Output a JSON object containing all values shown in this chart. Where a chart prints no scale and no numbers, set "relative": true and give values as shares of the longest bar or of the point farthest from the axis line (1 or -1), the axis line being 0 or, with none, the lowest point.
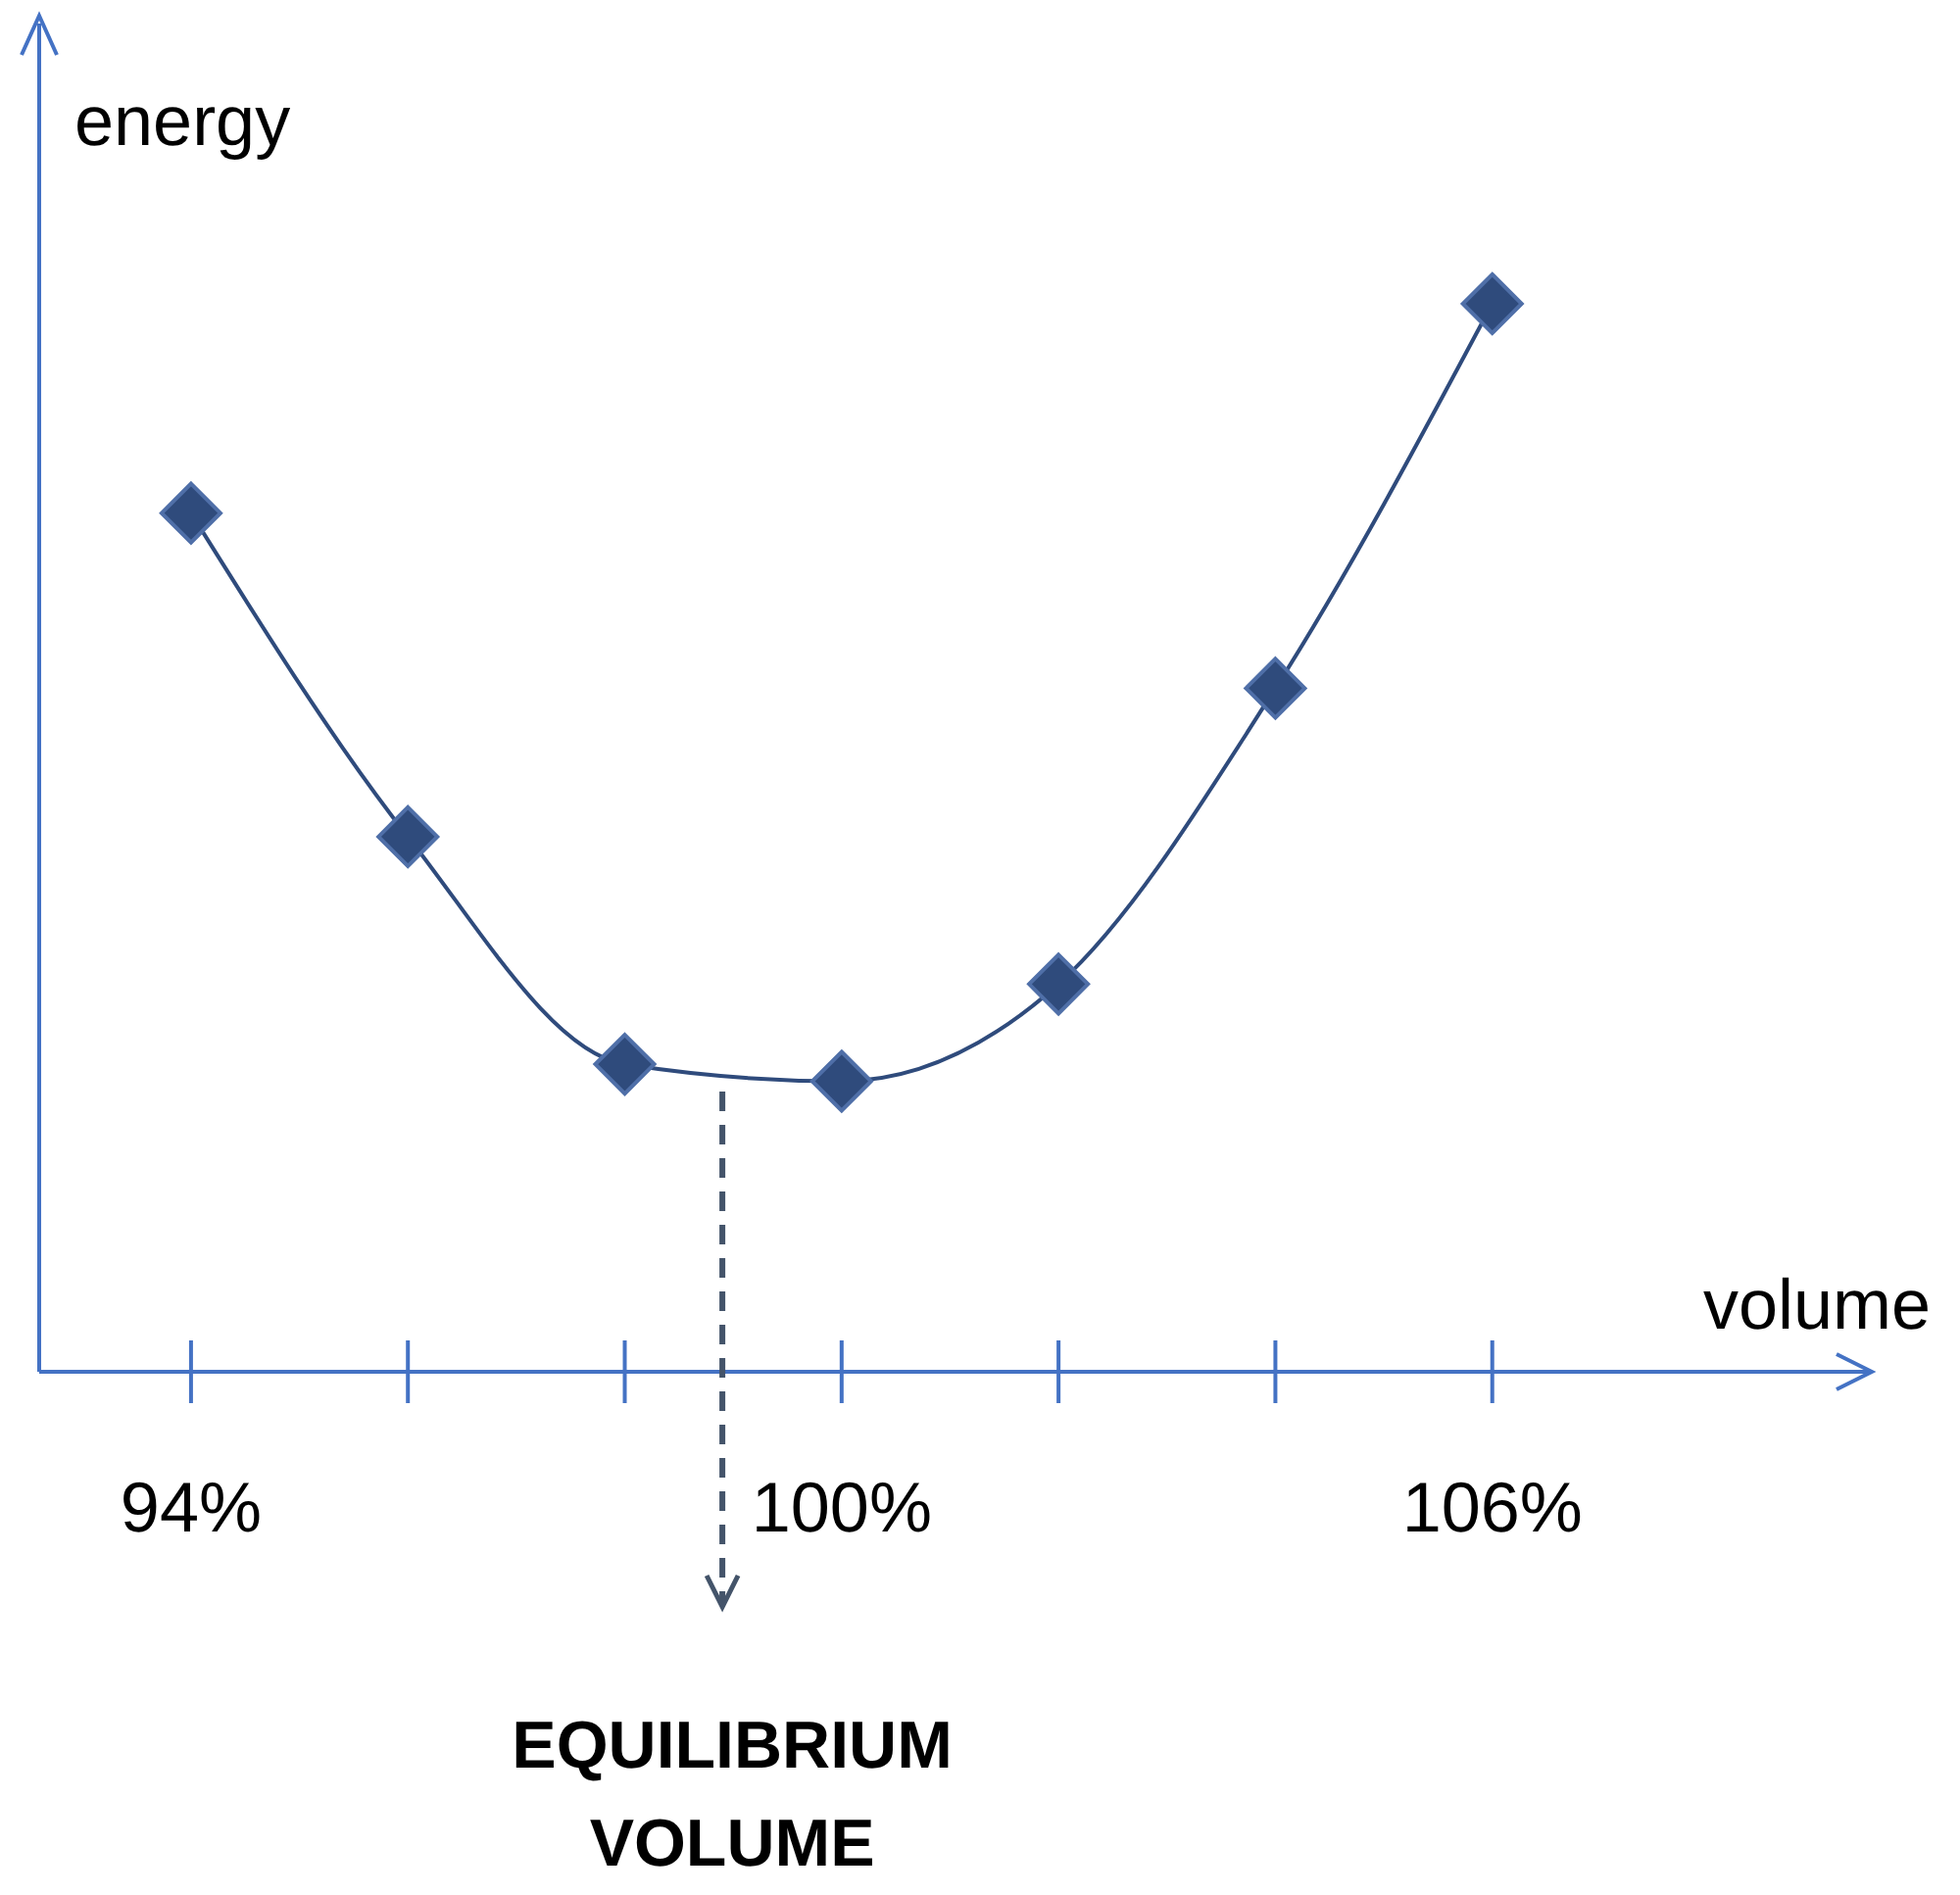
{
  "chart_data": {
    "type": "line",
    "relative": true,
    "xlabel": "volume",
    "ylabel": "energy",
    "x": [
      94,
      96,
      98,
      100,
      102,
      104,
      106
    ],
    "series": [
      {
        "color": "#2f4b7c",
        "values": [
          0.804,
          0.501,
          0.288,
          0.272,
          0.363,
          0.64,
          1
        ]
      }
    ],
    "xlim": [
      92.6,
      109.5
    ],
    "xticks": [
      {
        "value": 94,
        "label": "94%"
      },
      {
        "value": 96,
        "label": null
      },
      {
        "value": 98,
        "label": null
      },
      {
        "value": 100,
        "label": "100%"
      },
      {
        "value": 102,
        "label": null
      },
      {
        "value": 104,
        "label": null
      },
      {
        "value": 106,
        "label": "106%"
      }
    ],
    "ref_lines": [
      {
        "axis": "x",
        "value": 98.9,
        "label": "EQUILIBRIUM VOLUME",
        "line_style": "dashed",
        "color": "#44546a"
      }
    ],
    "marker": "diamond",
    "line_style": "solid",
    "grid": false,
    "legend": false
  }
}
